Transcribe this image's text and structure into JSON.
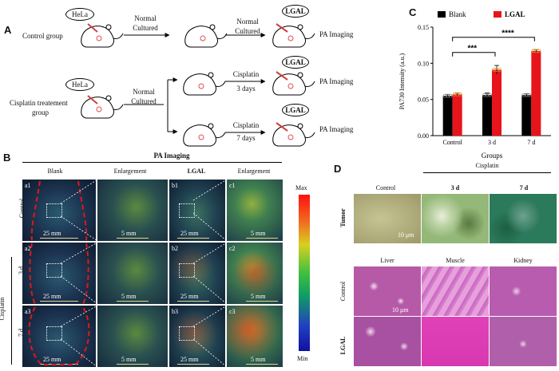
{
  "panel_labels": {
    "a": "A",
    "b": "B",
    "c": "C",
    "d": "D"
  },
  "panelA": {
    "control_label": "Control group",
    "cis_label_1": "Cisplatin treatement",
    "cis_label_2": "group",
    "hela": "HeLa",
    "normal": "Normal",
    "cultured": "Cultured",
    "lgal": "LGAL",
    "pa_imaging": "PA Imaging",
    "cisplatin": "Cisplatin",
    "d3": "3 days",
    "d7": "7 days"
  },
  "panelB": {
    "title": "PA Imaging",
    "col_headers": [
      "Blank",
      "Enlargement",
      "LGAL",
      "Enlargement"
    ],
    "row_labels": [
      "Control",
      "3 d",
      "7 d"
    ],
    "cisplatin_label": "Cisplatin",
    "cell_tags": [
      [
        "a1",
        "b1",
        "c1"
      ],
      [
        "a2",
        "b2",
        "c2"
      ],
      [
        "a3",
        "b3",
        "c3"
      ]
    ],
    "scale_25": "25 mm",
    "scale_5": "5 mm",
    "colorbar_max": "Max",
    "colorbar_min": "Min"
  },
  "chart_data": {
    "type": "bar",
    "categories": [
      "Control",
      "3 d",
      "7 d"
    ],
    "series": [
      {
        "name": "Blank",
        "values": [
          0.055,
          0.056,
          0.056
        ],
        "errors": [
          0.002,
          0.003,
          0.002
        ],
        "color": "#000000"
      },
      {
        "name": "LGAL",
        "values": [
          0.057,
          0.091,
          0.117
        ],
        "errors": [
          0.002,
          0.006,
          0.002
        ],
        "color": "#e8141b"
      }
    ],
    "xlabel": "Groups",
    "ylabel": "PA730 Intensity (a.u.)",
    "ylim": [
      0,
      0.15
    ],
    "yticks": [
      "0.00",
      "0.05",
      "0.10",
      "0.15"
    ],
    "significance": [
      "***",
      "****"
    ],
    "legend_position": "top"
  },
  "panelD": {
    "cisplatin": "Cisplatin",
    "tumor_headers": [
      "Control",
      "3 d",
      "7 d"
    ],
    "tumor_row": "Tumor",
    "organ_headers": [
      "Liver",
      "Muscle",
      "Kidney"
    ],
    "organ_rows": [
      "Control",
      "LGAL"
    ],
    "scale_tumor": "10 μm",
    "scale_organ": "10 μm"
  },
  "colors": {
    "red_dash": "#e01818",
    "bar_red": "#e8141b",
    "histo_pink": "#d86fc0"
  }
}
